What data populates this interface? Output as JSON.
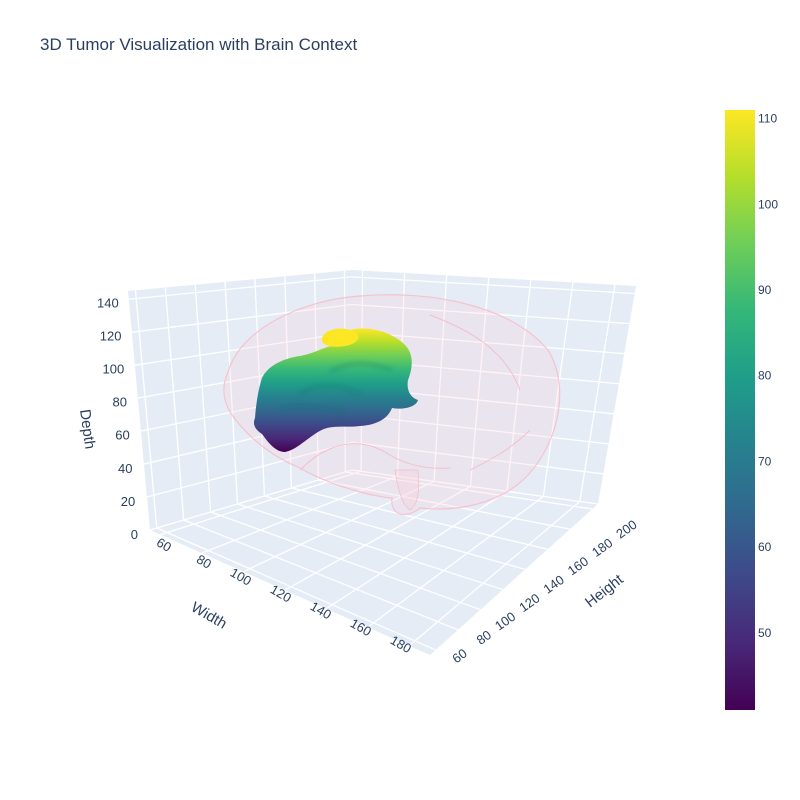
{
  "chart_data": {
    "type": "3d-surface",
    "title": "3D Tumor Visualization with Brain Context",
    "axes": {
      "x": {
        "label": "Width",
        "ticks": [
          60,
          80,
          100,
          120,
          140,
          160,
          180
        ],
        "range": [
          55,
          190
        ]
      },
      "y": {
        "label": "Height",
        "ticks": [
          60,
          80,
          100,
          120,
          140,
          160,
          180,
          200
        ],
        "range": [
          55,
          205
        ]
      },
      "z": {
        "label": "Depth",
        "ticks": [
          0,
          20,
          40,
          60,
          80,
          100,
          120,
          140
        ],
        "range": [
          0,
          145
        ]
      }
    },
    "series": [
      {
        "kind": "isosurface",
        "color": "#ffc0cb",
        "opacity": 0.25
      },
      {
        "kind": "isosurface",
        "colorscale": "Viridis",
        "color_range": [
          41,
          111
        ]
      }
    ],
    "colorbar": {
      "ticks": [
        50,
        60,
        70,
        80,
        90,
        100,
        110
      ],
      "range": [
        41,
        111
      ],
      "colors": [
        "#440154",
        "#482878",
        "#3e4989",
        "#31688e",
        "#26828e",
        "#1f9e89",
        "#35b779",
        "#6ece58",
        "#b5de2b",
        "#fde725"
      ]
    },
    "grid": true,
    "background": "#e5ecf6"
  }
}
